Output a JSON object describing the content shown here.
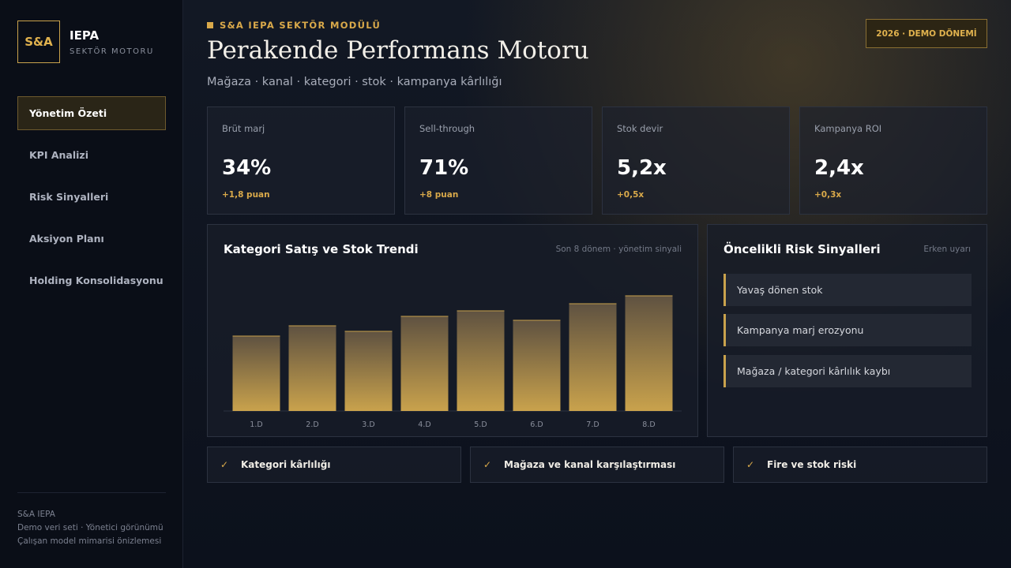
{
  "sidebar": {
    "logo": "S&A",
    "brand": "IEPA",
    "brand_sub": "SEKTÖR MOTORU",
    "nav": [
      "Yönetim Özeti",
      "KPI Analizi",
      "Risk Sinyalleri",
      "Aksiyon Planı",
      "Holding Konsolidasyonu"
    ],
    "footer": [
      "S&A IEPA",
      "Demo veri seti · Yönetici görünümü",
      "Çalışan model mimarisi önizlemesi"
    ]
  },
  "header": {
    "eyebrow": "S&A IEPA SEKTÖR MODÜLÜ",
    "title": "Perakende Performans Motoru",
    "subtitle": "Mağaza · kanal · kategori · stok · kampanya kârlılığı",
    "badge": "2026 · DEMO DÖNEMİ"
  },
  "kpis": [
    {
      "label": "Brüt marj",
      "value": "34%",
      "delta": "+1,8 puan"
    },
    {
      "label": "Sell-through",
      "value": "71%",
      "delta": "+8 puan"
    },
    {
      "label": "Stok devir",
      "value": "5,2x",
      "delta": "+0,5x"
    },
    {
      "label": "Kampanya ROI",
      "value": "2,4x",
      "delta": "+0,3x"
    }
  ],
  "chart_data": {
    "type": "bar",
    "title": "Kategori Satış ve Stok Trendi",
    "subtitle": "Son 8 dönem · yönetim sinyali",
    "categories": [
      "1.D",
      "2.D",
      "3.D",
      "4.D",
      "5.D",
      "6.D",
      "7.D",
      "8.D"
    ],
    "values": [
      95,
      108,
      101,
      120,
      127,
      115,
      136,
      146
    ],
    "ylim": [
      0,
      175
    ],
    "color": "#c9a24c"
  },
  "risks": {
    "title": "Öncelikli Risk Sinyalleri",
    "note": "Erken uyarı",
    "items": [
      "Yavaş dönen stok",
      "Kampanya marj erozyonu",
      "Mağaza / kategori kârlılık kaybı"
    ]
  },
  "features": [
    "Kategori kârlılığı",
    "Mağaza ve kanal karşılaştırması",
    "Fire ve stok riski"
  ]
}
